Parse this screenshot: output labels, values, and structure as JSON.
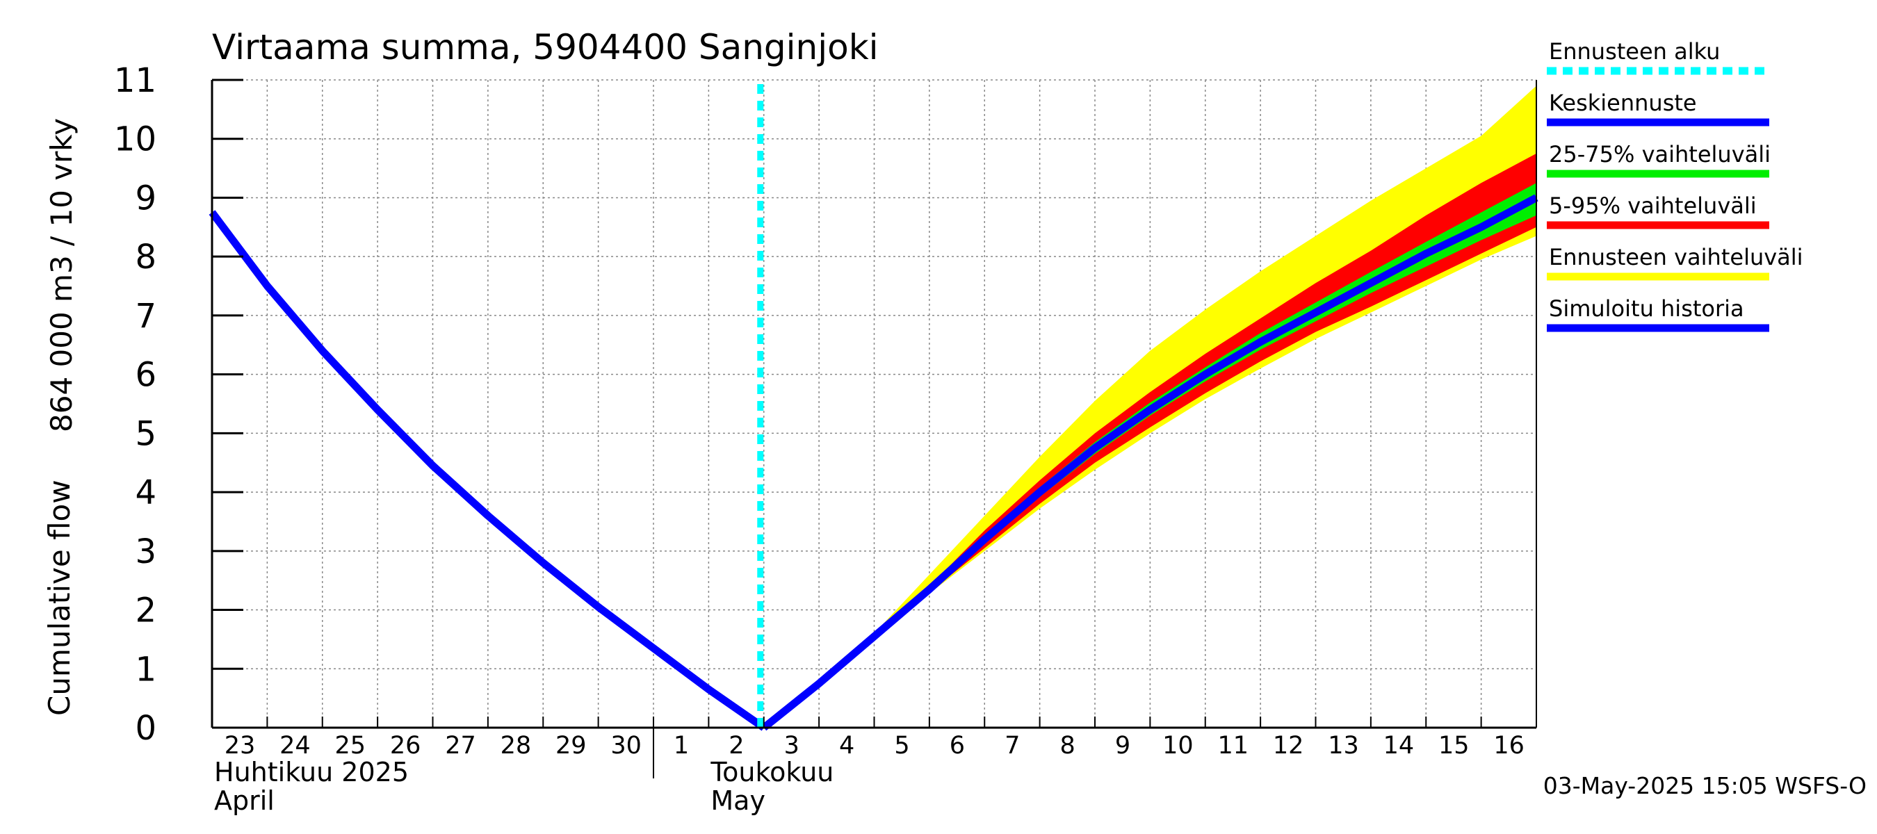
{
  "chart_data": {
    "type": "area",
    "title": "Virtaama summa, 5904400 Sanginjoki",
    "ylabel_line1": "864 000 m3 / 10 vrky",
    "ylabel_line2": "Cumulative flow",
    "ylim": [
      0,
      11
    ],
    "yticks": [
      "0",
      "1",
      "2",
      "3",
      "4",
      "5",
      "6",
      "7",
      "8",
      "9",
      "10",
      "11"
    ],
    "x_day_labels": [
      "23",
      "24",
      "25",
      "26",
      "27",
      "28",
      "29",
      "30",
      "1",
      "2",
      "3",
      "4",
      "5",
      "6",
      "7",
      "8",
      "9",
      "10",
      "11",
      "12",
      "13",
      "14",
      "15",
      "16"
    ],
    "x_range_days": [
      0,
      24
    ],
    "month_labels": [
      {
        "fi": "Huhtikuu  2025",
        "en": "April",
        "day": 0
      },
      {
        "fi": "Toukokuu",
        "en": "May",
        "day": 9
      }
    ],
    "month_divider_day": 8,
    "forecast_start_day": 10,
    "series": {
      "simulated_history": {
        "name": "Simuloitu historia",
        "color": "#0000ff",
        "x": [
          0,
          1,
          2,
          3,
          4,
          5,
          6,
          7,
          8,
          9,
          10
        ],
        "y": [
          8.75,
          7.5,
          6.4,
          5.4,
          4.45,
          3.6,
          2.8,
          2.05,
          1.35,
          0.65,
          0.0
        ]
      },
      "mean_forecast": {
        "name": "Keskiennuste",
        "color": "#0000ff",
        "x": [
          10,
          11,
          12,
          13,
          14,
          15,
          16,
          17,
          18,
          19,
          20,
          21,
          22,
          23,
          24
        ],
        "y": [
          0.0,
          0.75,
          1.55,
          2.35,
          3.2,
          4.0,
          4.75,
          5.4,
          6.0,
          6.55,
          7.05,
          7.55,
          8.05,
          8.5,
          9.0
        ]
      },
      "band_25_75": {
        "name": "25-75% vaihteluväli",
        "color": "#00ee00",
        "x": [
          10,
          11,
          12,
          13,
          14,
          15,
          16,
          17,
          18,
          19,
          20,
          21,
          22,
          23,
          24
        ],
        "low": [
          0.0,
          0.75,
          1.55,
          2.33,
          3.15,
          3.92,
          4.65,
          5.3,
          5.88,
          6.42,
          6.9,
          7.38,
          7.83,
          8.28,
          8.7
        ],
        "high": [
          0.0,
          0.75,
          1.55,
          2.37,
          3.25,
          4.08,
          4.85,
          5.52,
          6.12,
          6.7,
          7.22,
          7.74,
          8.25,
          8.75,
          9.25
        ]
      },
      "band_5_95": {
        "name": "5-95% vaihteluväli",
        "color": "#ff0000",
        "x": [
          10,
          11,
          12,
          13,
          14,
          15,
          16,
          17,
          18,
          19,
          20,
          21,
          22,
          23,
          24
        ],
        "low": [
          0.0,
          0.75,
          1.55,
          2.3,
          3.05,
          3.8,
          4.5,
          5.1,
          5.68,
          6.22,
          6.72,
          7.15,
          7.6,
          8.05,
          8.5
        ],
        "high": [
          0.0,
          0.75,
          1.55,
          2.4,
          3.35,
          4.2,
          5.0,
          5.7,
          6.35,
          6.95,
          7.55,
          8.1,
          8.7,
          9.25,
          9.75
        ]
      },
      "forecast_range": {
        "name": "Ennusteen vaihteluväli",
        "color": "#ffff00",
        "x": [
          10,
          11,
          12,
          13,
          14,
          15,
          16,
          17,
          18,
          19,
          20,
          21,
          22,
          23,
          24
        ],
        "low": [
          0.0,
          0.75,
          1.55,
          2.28,
          3.0,
          3.72,
          4.38,
          5.0,
          5.58,
          6.1,
          6.6,
          7.05,
          7.5,
          7.95,
          8.35
        ],
        "high": [
          0.0,
          0.75,
          1.6,
          2.6,
          3.6,
          4.6,
          5.55,
          6.4,
          7.1,
          7.75,
          8.35,
          8.95,
          9.5,
          10.05,
          10.9
        ]
      }
    },
    "legend": [
      {
        "label": "Ennusteen alku",
        "color": "#00ffff",
        "style": "dashed"
      },
      {
        "label": "Keskiennuste",
        "color": "#0000ff",
        "style": "solid"
      },
      {
        "label": "25-75% vaihteluväli",
        "color": "#00ee00",
        "style": "solid"
      },
      {
        "label": "5-95% vaihteluväli",
        "color": "#ff0000",
        "style": "solid"
      },
      {
        "label": "Ennusteen vaihteluväli",
        "color": "#ffff00",
        "style": "solid"
      },
      {
        "label": "Simuloitu historia",
        "color": "#0000ff",
        "style": "solid"
      }
    ],
    "legend_position": "right",
    "grid": true
  },
  "footer": {
    "timestamp": "03-May-2025 15:05 WSFS-O"
  }
}
